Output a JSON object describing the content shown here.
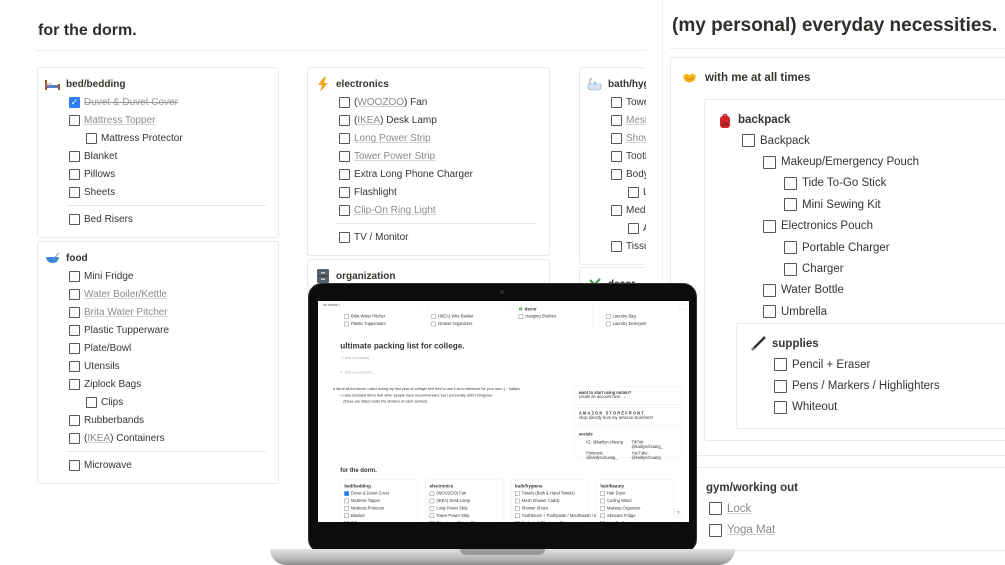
{
  "dorm": {
    "title": "for the dorm.",
    "cards": {
      "bed": {
        "title": "bed/bedding",
        "icon": "bed-icon",
        "items": [
          {
            "text": "Duvet & Duvet Cover",
            "checked": true,
            "done": true
          },
          {
            "text": "Mattress Topper",
            "link": true
          },
          {
            "text": "Mattress Protector",
            "level": 1
          },
          {
            "text": "Blanket"
          },
          {
            "text": "Pillows"
          },
          {
            "text": "Sheets"
          },
          {
            "divider": true
          },
          {
            "text": "Bed Risers"
          }
        ]
      },
      "food": {
        "title": "food",
        "icon": "bowl-icon",
        "items": [
          {
            "text": "Mini Fridge"
          },
          {
            "text": "Water Boiler/Kettle",
            "link": true
          },
          {
            "text": "Brita Water Pitcher",
            "link": true
          },
          {
            "text": "Plastic Tupperware"
          },
          {
            "text": "Plate/Bowl"
          },
          {
            "text": "Utensils"
          },
          {
            "text": "Ziplock Bags"
          },
          {
            "text": "Clips",
            "level": 1
          },
          {
            "text": "Rubberbands"
          },
          {
            "pre": "(",
            "linktext": "IKEA",
            "post": ") Containers"
          },
          {
            "divider": true
          },
          {
            "text": "Microwave"
          }
        ]
      },
      "electronics": {
        "title": "electronics",
        "icon": "lightning-icon",
        "items": [
          {
            "pre": "(",
            "linktext": "WOOZOO",
            "post": ") Fan"
          },
          {
            "pre": "(",
            "linktext": "IKEA",
            "post": ") Desk Lamp"
          },
          {
            "text": "Long Power Strip",
            "link": true
          },
          {
            "text": "Tower Power Strip",
            "link": true
          },
          {
            "text": "Extra Long Phone Charger"
          },
          {
            "text": "Flashlight"
          },
          {
            "text": "Clip-On Ring Light",
            "link": true
          },
          {
            "divider": true
          },
          {
            "text": "TV / Monitor"
          }
        ]
      },
      "organization": {
        "title": "organization",
        "icon": "cabinet-icon",
        "items": []
      },
      "bath": {
        "title": "bath/hygi",
        "icon": "bathtub-icon",
        "items": [
          {
            "text": "Towel"
          },
          {
            "text": "Mesh",
            "link": true
          },
          {
            "text": "Show",
            "link": true
          },
          {
            "text": "Tooth"
          },
          {
            "text": "Body"
          },
          {
            "text": "L",
            "level": 1
          },
          {
            "text": "Medi"
          },
          {
            "text": "A",
            "level": 1
          },
          {
            "text": "Tissu"
          }
        ]
      },
      "decor": {
        "title": "decor",
        "icon": "plant-icon",
        "items": []
      }
    }
  },
  "personal": {
    "title": "(my personal) everyday necessities.",
    "with_me": {
      "title": "with me at all times",
      "icon": "handshake-icon"
    },
    "backpack": {
      "title": "backpack",
      "icon": "backpack-icon",
      "items": [
        {
          "text": "Backpack"
        },
        {
          "text": "Makeup/Emergency Pouch",
          "level": 1
        },
        {
          "text": "Tide To-Go Stick",
          "level": 2
        },
        {
          "text": "Mini Sewing Kit",
          "level": 2
        },
        {
          "text": "Electronics Pouch",
          "level": 1
        },
        {
          "text": "Portable Charger",
          "level": 2
        },
        {
          "text": "Charger",
          "level": 2
        },
        {
          "text": "Water Bottle",
          "level": 1
        },
        {
          "text": "Umbrella",
          "level": 1
        }
      ]
    },
    "supplies": {
      "title": "supplies",
      "icon": "pen-icon",
      "items": [
        {
          "text": "Pencil + Eraser"
        },
        {
          "text": "Pens / Markers / Highlighters"
        },
        {
          "text": "Whiteout"
        }
      ]
    },
    "gym": {
      "title": "gym/working out",
      "items": [
        {
          "text": "Lock",
          "link": true
        },
        {
          "text": "Yoga Mat",
          "link": true
        }
      ]
    }
  },
  "laptop": {
    "breadcrumb": "ks.notion / TEMPLATES / ultimate packing list for college.",
    "edited": "Edited 14h ago",
    "share": "Share",
    "strip": [
      {
        "items": [
          "Brita Water Pitcher",
          "Plastic Tupperware"
        ]
      },
      {
        "items": [
          "(IKEA) Wire Basket",
          "Drawer Organizers"
        ]
      },
      {
        "title": "decor",
        "items": [
          "Hanging Shelves"
        ]
      },
      {
        "items": [
          "Laundry Bag",
          "Laundry Detergent"
        ]
      }
    ],
    "page_title": "ultimate packing list for college.",
    "add_property": "Add a property",
    "add_comment": "Add a comment...",
    "intro": "a list of all the items I used during my first year of college! feel free to use it as a reference for your own :) ~ kaitlyn",
    "bullet": "i also included items that other people have recommended, but I personally didn't bring/use",
    "bullet_note": "(these are listed under the dividers of each section)",
    "callouts": [
      {
        "title": "want to start using notion?",
        "body": "create an account here →"
      },
      {
        "title": "AMAZON STOREFRONT",
        "body": "shop directly from my amazon storefront!"
      },
      {
        "title": "socials",
        "body": ""
      }
    ],
    "socials": [
      "IG: @kaitlyn.chuang",
      "TikTok: @kaitlynchuang_",
      "Pinterest: @kaitlynchuang_",
      "YouTube: @kaitlynchuang"
    ],
    "section": "for the dorm.",
    "mini_cards": [
      {
        "title": "bed/bedding",
        "items": [
          "Duvet & Duvet Cover",
          "Mattress Topper",
          "Mattress Protector",
          "Blanket",
          "Pillows",
          "Sheets"
        ]
      },
      {
        "title": "electronics",
        "items": [
          "(WOOZOO) Fan",
          "(IKEA) Desk Lamp",
          "Long Power Strip",
          "Tower Power Strip",
          "Extra Long Phone Charger",
          "Flashlight",
          "Clip-On Ring Light"
        ]
      },
      {
        "title": "bath/hygiene",
        "items": [
          "Towels (Bath & Hand Towels)",
          "Mesh Shower Caddy",
          "Shower Shoes",
          "Toothbrush + Toothpaste / Mouthwash / Etc.",
          "Bodywash/Shampoo/Etc.",
          "Loofah",
          "Medicine (Pain etc)"
        ]
      },
      {
        "title": "hair/beauty",
        "items": [
          "Hair Dryer",
          "Curling Wand",
          "Makeup Organizer",
          "Skincare Fridge",
          "Hair Products",
          "Dry Shampoo",
          "Vanity Mirror w/ Lights"
        ]
      }
    ],
    "help": "?"
  },
  "colors": {
    "accent": "#2e7ff5",
    "text": "#37352f",
    "link": "#8c8b88"
  }
}
